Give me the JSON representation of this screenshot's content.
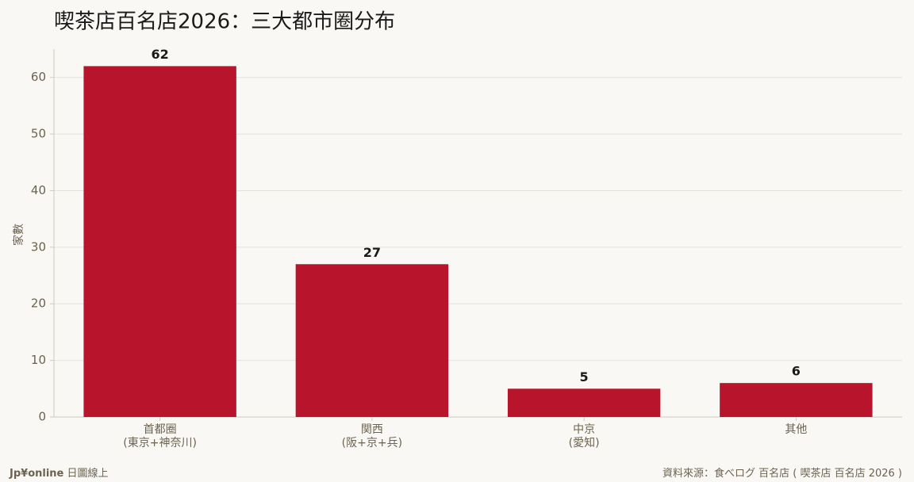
{
  "chart_data": {
    "type": "bar",
    "title": "喫茶店百名店2026：三大都市圈分布",
    "y_label": "家數",
    "categories": [
      "首都圈\n(東京+神奈川)",
      "関西\n(阪+京+兵)",
      "中京\n(愛知)",
      "其他"
    ],
    "values": [
      62,
      27,
      5,
      6
    ],
    "color": "#b8142b",
    "ylim": [
      0,
      65
    ],
    "yticks": [
      0,
      10,
      20,
      30,
      40,
      50,
      60
    ],
    "grid": true
  },
  "footer": {
    "brand": "Jp¥online",
    "brand_sub": "日圖線上",
    "source": "資料來源：食べログ 百名店 ( 喫茶店 百名店 2026 )"
  }
}
